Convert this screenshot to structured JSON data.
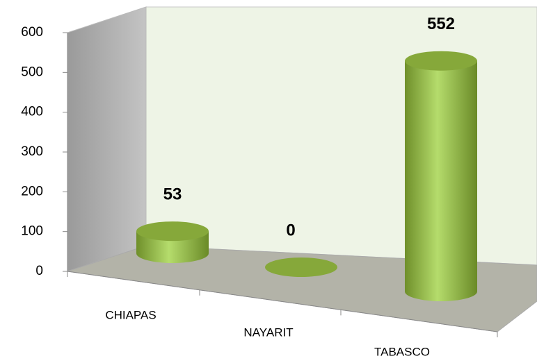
{
  "chart_data": {
    "type": "bar3d",
    "categories": [
      "CHIAPAS",
      "NAYARIT",
      "TABASCO"
    ],
    "values": [
      53,
      0,
      552
    ],
    "color": "#9bc451",
    "ylim": [
      0,
      600
    ],
    "yticks": [
      0,
      100,
      200,
      300,
      400,
      500,
      600
    ]
  }
}
